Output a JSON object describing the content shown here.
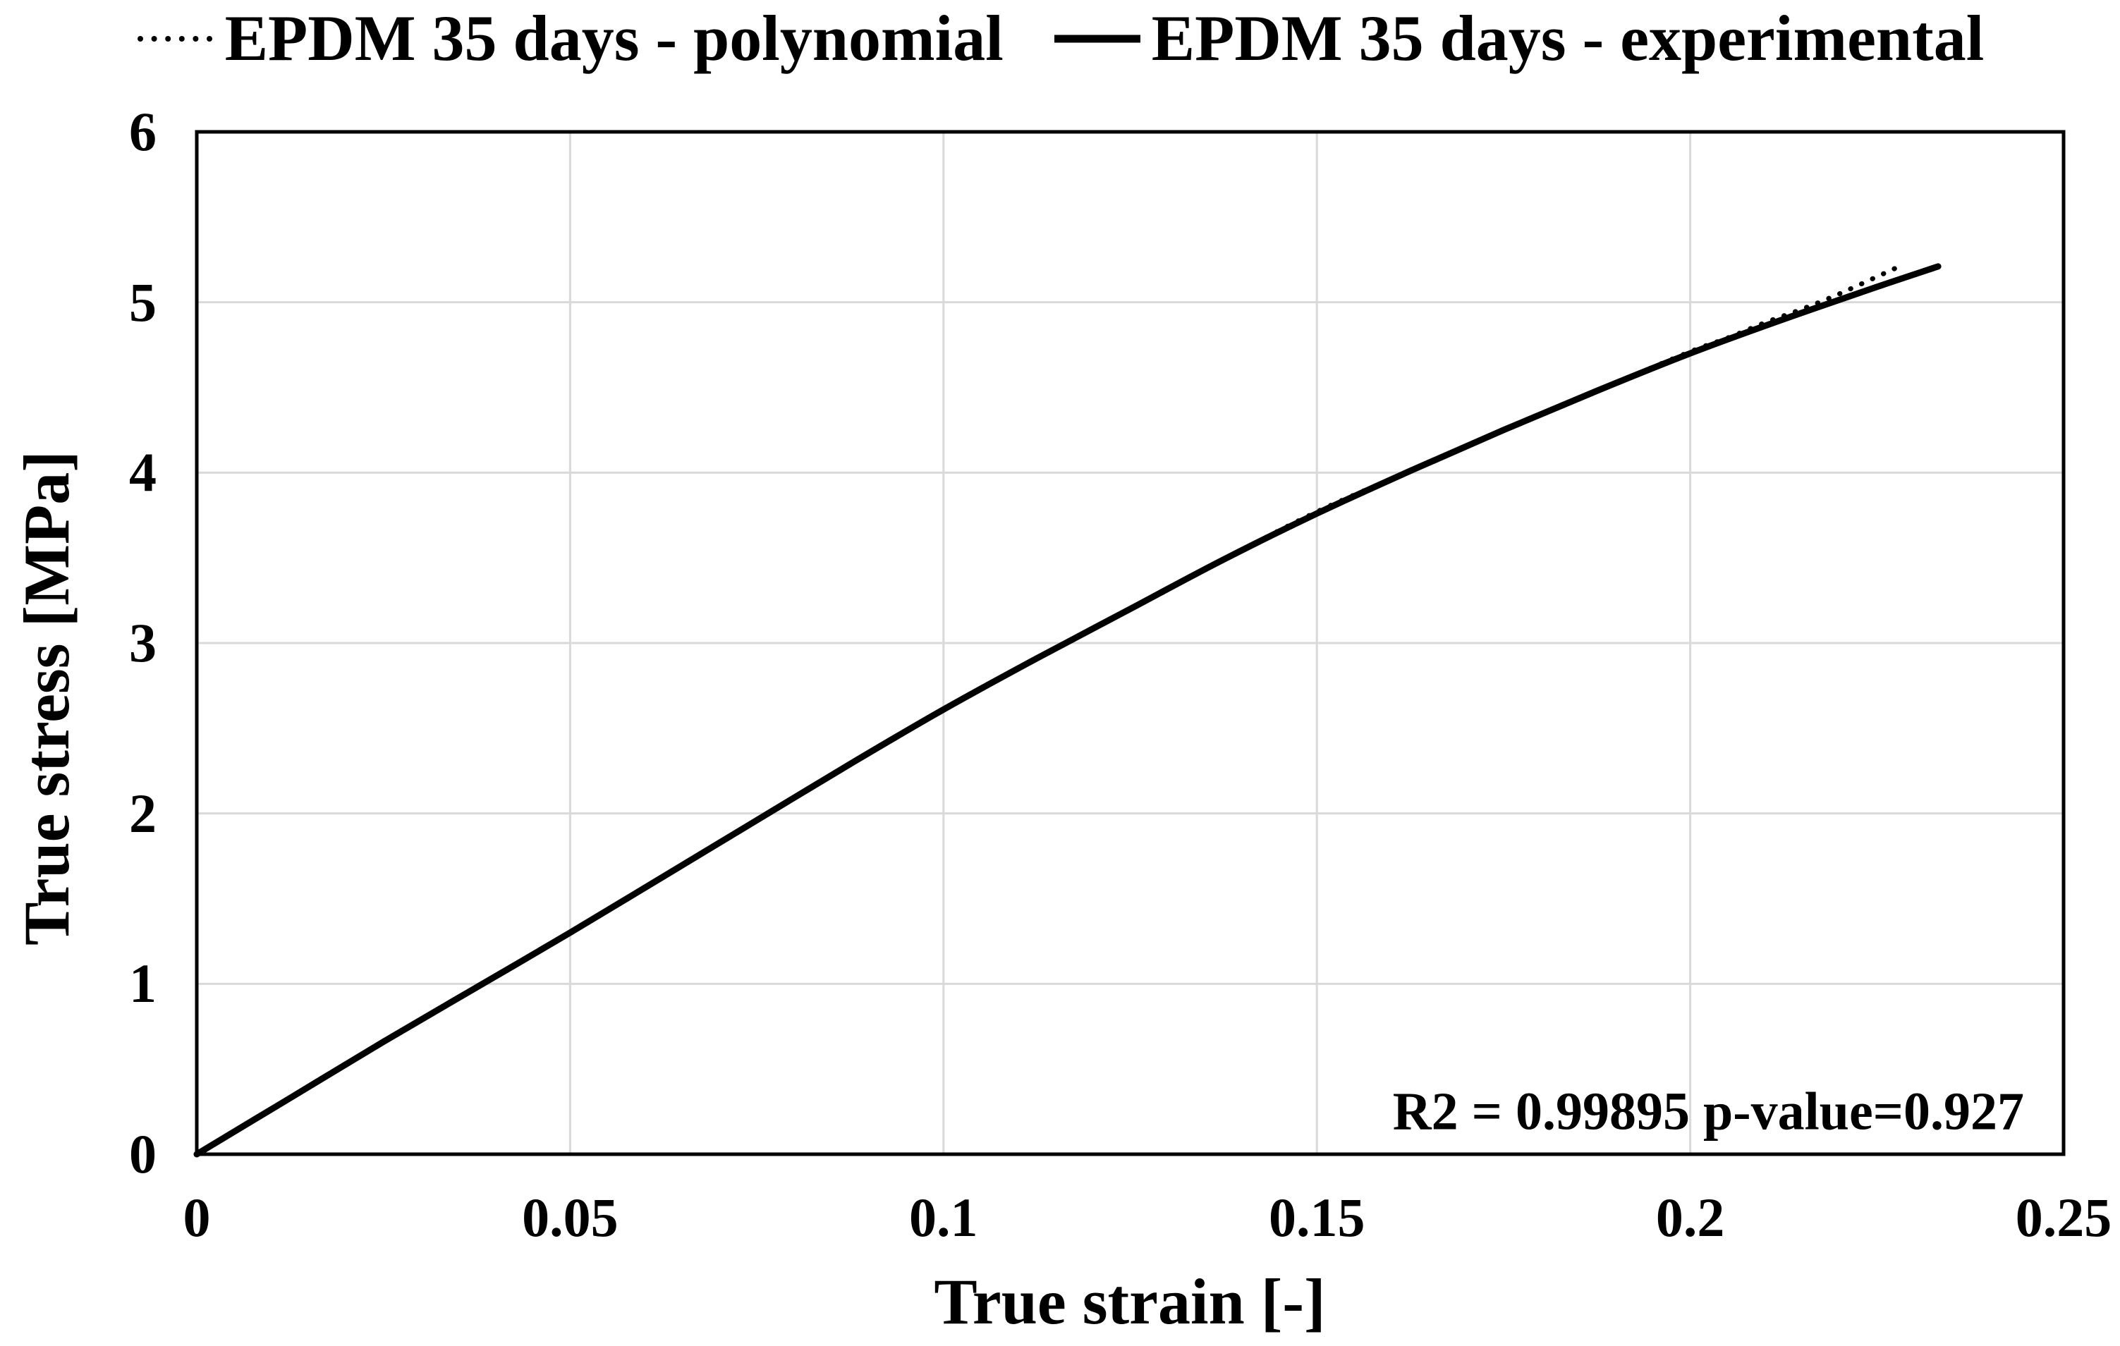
{
  "figure": {
    "background_color": "#ffffff",
    "text_color": "#000000",
    "grid_color": "#d9d9d9",
    "axis_color": "#000000"
  },
  "chart_data": {
    "type": "line",
    "title": "",
    "xlabel": "True strain [-]",
    "ylabel": "True stress [MPa]",
    "xlim": [
      0,
      0.25
    ],
    "ylim": [
      0,
      6
    ],
    "grid": true,
    "legend_position": "top",
    "annotation": "R2 = 0.99895 p-value=0.927",
    "x_ticks": [
      0,
      0.05,
      0.1,
      0.15,
      0.2,
      0.25
    ],
    "x_tick_labels": [
      "0",
      "0.05",
      "0.1",
      "0.15",
      "0.2",
      "0.25"
    ],
    "y_ticks": [
      0,
      1,
      2,
      3,
      4,
      5,
      6
    ],
    "y_tick_labels": [
      "0",
      "1",
      "2",
      "3",
      "4",
      "5",
      "6"
    ],
    "series": [
      {
        "name": "EPDM 35 days - polynomial",
        "line_style": "dotted",
        "color": "#000000",
        "x": [
          0,
          0.0125,
          0.025,
          0.0375,
          0.05,
          0.0625,
          0.075,
          0.0875,
          0.1,
          0.1125,
          0.125,
          0.1375,
          0.15,
          0.1625,
          0.175,
          0.1875,
          0.2,
          0.205,
          0.21,
          0.215,
          0.22,
          0.2275
        ],
        "y": [
          0,
          0.33,
          0.66,
          0.98,
          1.3,
          1.63,
          1.96,
          2.29,
          2.61,
          2.91,
          3.2,
          3.49,
          3.77,
          4.01,
          4.25,
          4.48,
          4.71,
          4.79,
          4.88,
          4.96,
          5.05,
          5.2
        ]
      },
      {
        "name": "EPDM 35 days - experimental",
        "line_style": "solid",
        "color": "#000000",
        "x": [
          0,
          0.0125,
          0.025,
          0.0375,
          0.05,
          0.0625,
          0.075,
          0.0875,
          0.1,
          0.1125,
          0.125,
          0.1375,
          0.15,
          0.1625,
          0.175,
          0.1875,
          0.2,
          0.2125,
          0.225,
          0.2332
        ],
        "y": [
          0,
          0.33,
          0.66,
          0.98,
          1.3,
          1.63,
          1.96,
          2.29,
          2.61,
          2.91,
          3.2,
          3.49,
          3.76,
          4.01,
          4.25,
          4.48,
          4.7,
          4.9,
          5.09,
          5.21
        ]
      }
    ]
  }
}
